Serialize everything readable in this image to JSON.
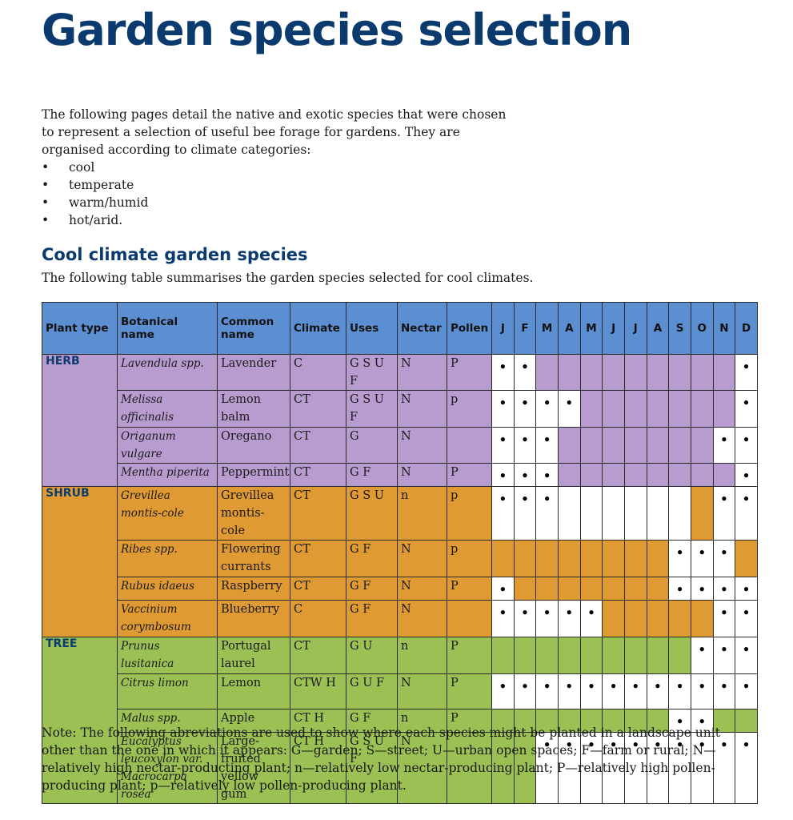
{
  "title": "Garden species selection",
  "intro": {
    "paragraph": "The following pages detail the native and exotic species that were chosen to represent a selection of useful bee forage for gardens. They are organised according to climate categories:",
    "bullet_symbol": "•",
    "bullets": [
      "cool",
      "temperate",
      "warm/humid",
      "hot/arid."
    ]
  },
  "section": {
    "title": "Cool climate garden species",
    "subtitle": "The following table summarises the garden species selected for cool climates."
  },
  "table": {
    "headers": {
      "plant_type": "Plant type",
      "botanical": "Botanical name",
      "common": "Common name",
      "climate": "Climate",
      "uses": "Uses",
      "nectar": "Nectar",
      "pollen": "Pollen"
    },
    "months": [
      "J",
      "F",
      "M",
      "A",
      "M",
      "J",
      "J",
      "A",
      "S",
      "O",
      "N",
      "D"
    ],
    "dot_symbol": "●",
    "group_colors": {
      "HERB": "#b89cd0",
      "SHRUB": "#e09a34",
      "TREE": "#9bc154"
    },
    "header_color": "#5b8fd1",
    "rows": [
      {
        "group": "HERB",
        "plant_type": "HERB",
        "botanical": "Lavendula spp.",
        "common": "Lavender",
        "climate": "C",
        "uses": "G S U F",
        "nectar": "N",
        "pollen": "P",
        "white": [
          0,
          1,
          11
        ],
        "dots": [
          0,
          1,
          11
        ]
      },
      {
        "group": "HERB",
        "plant_type": "",
        "botanical": "Melissa officinalis",
        "common": "Lemon balm",
        "climate": "CT",
        "uses": "G S U F",
        "nectar": "N",
        "pollen": "p",
        "white": [
          0,
          1,
          2,
          3,
          11
        ],
        "dots": [
          0,
          1,
          2,
          3,
          11
        ]
      },
      {
        "group": "HERB",
        "plant_type": "",
        "botanical": "Origanum vulgare",
        "common": "Oregano",
        "climate": "CT",
        "uses": "G",
        "nectar": "N",
        "pollen": "",
        "white": [
          0,
          1,
          2,
          10,
          11
        ],
        "dots": [
          0,
          1,
          2,
          10,
          11
        ]
      },
      {
        "group": "HERB",
        "plant_type": "",
        "botanical": "Mentha piperita",
        "common": "Peppermint",
        "climate": "CT",
        "uses": "G F",
        "nectar": "N",
        "pollen": "P",
        "white": [
          0,
          1,
          2,
          11
        ],
        "dots": [
          0,
          1,
          2,
          11
        ]
      },
      {
        "group": "SHRUB",
        "plant_type": "SHRUB",
        "botanical": "Grevillea montis-cole",
        "common": "Grevillea montis-cole",
        "climate": "CT",
        "uses": "G S U",
        "nectar": "n",
        "pollen": "p",
        "white": [
          0,
          1,
          2,
          3,
          4,
          5,
          6,
          7,
          8,
          10,
          11
        ],
        "dots": [
          0,
          1,
          2,
          10,
          11
        ]
      },
      {
        "group": "SHRUB",
        "plant_type": "",
        "botanical": "Ribes spp.",
        "common": "Flowering currants",
        "climate": "CT",
        "uses": "G F",
        "nectar": "N",
        "pollen": "p",
        "white": [
          8,
          9,
          10
        ],
        "dots": [
          8,
          9,
          10
        ]
      },
      {
        "group": "SHRUB",
        "plant_type": "",
        "botanical": "Rubus idaeus",
        "common": "Raspberry",
        "climate": "CT",
        "uses": "G F",
        "nectar": "N",
        "pollen": "P",
        "white": [
          0,
          8,
          9,
          10,
          11
        ],
        "dots": [
          0,
          8,
          9,
          10,
          11
        ]
      },
      {
        "group": "SHRUB",
        "plant_type": "",
        "botanical": "Vaccinium corymbosum",
        "common": "Blueberry",
        "climate": "C",
        "uses": "G F",
        "nectar": "N",
        "pollen": "",
        "white": [
          0,
          1,
          2,
          3,
          4,
          10,
          11
        ],
        "dots": [
          0,
          1,
          2,
          3,
          4,
          10,
          11
        ]
      },
      {
        "group": "TREE",
        "plant_type": "TREE",
        "botanical": "Prunus lusitanica",
        "common": "Portugal laurel",
        "climate": "CT",
        "uses": "G U",
        "nectar": "n",
        "pollen": "P",
        "white": [
          9,
          10,
          11
        ],
        "dots": [
          9,
          10,
          11
        ]
      },
      {
        "group": "TREE",
        "plant_type": "",
        "botanical": "Citrus limon",
        "common": "Lemon",
        "climate": "CTW H",
        "uses": "G U F",
        "nectar": "N",
        "pollen": "P",
        "white": [
          0,
          1,
          2,
          3,
          4,
          5,
          6,
          7,
          8,
          9,
          10,
          11
        ],
        "dots": [
          0,
          1,
          2,
          3,
          4,
          5,
          6,
          7,
          8,
          9,
          10,
          11
        ]
      },
      {
        "group": "TREE",
        "plant_type": "",
        "botanical": "Malus spp.",
        "common": "Apple",
        "climate": "CT H",
        "uses": "G F",
        "nectar": "n",
        "pollen": "P",
        "white": [
          8,
          9
        ],
        "dots": [
          8,
          9
        ]
      },
      {
        "group": "TREE",
        "plant_type": "",
        "botanical": "Eucalyptus leucoxylon var. Macrocarpa rosea",
        "common": "Large-fruited yellow gum",
        "climate": "CT H",
        "uses": "G S U F",
        "nectar": "N",
        "pollen": "",
        "white": [
          2,
          3,
          4,
          5,
          6,
          7,
          8,
          9,
          10,
          11
        ],
        "dots": [
          2,
          3,
          4,
          5,
          6,
          7,
          8,
          9,
          10,
          11
        ]
      }
    ]
  },
  "note": "Note: The following abreviations are used to show where each species might be planted in a landscape unit other than the one in which it appears: G—garden; S—street; U—urban open spaces; F—farm or rural; N—relatively high nectar-producting plant; n—relatively low nectar-producing plant; P—relatively high pollen-producing plant; p—relatively low pollen-producing plant."
}
